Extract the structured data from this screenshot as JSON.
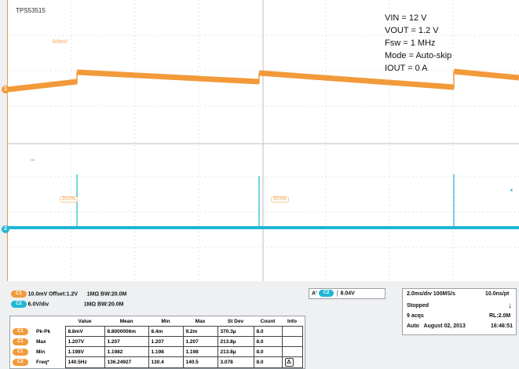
{
  "screen": {
    "title": "TPS53515",
    "settings": [
      "VIN = 12 V",
      "VOUT = 1.2 V",
      "Fsw = 1 MHz",
      "Mode = Auto-skip",
      "IOUT = 0 A"
    ],
    "ch1_marker": "1",
    "ch2_marker": "2",
    "small_tag_1": "500mV",
    "small_tag_2": "20.0%",
    "small_tag_3": "20.0%",
    "colors": {
      "ch1": "#f29a3a",
      "ch2": "#1fb6d5",
      "grid": "#c8c8c8"
    }
  },
  "channels": [
    {
      "badge": "C1",
      "scale": "10.0mV",
      "offset": "Offset:1.2V",
      "impedance": "1MΩ",
      "bw": "BW:20.0M"
    },
    {
      "badge": "C2",
      "scale": "6.0V/div",
      "impedance": "1MΩ",
      "bw": "BW:20.0M"
    }
  ],
  "trigger": {
    "label": "A'",
    "source": "C2",
    "slope_icon": "rising-edge",
    "level": "8.04V"
  },
  "timebase": {
    "scale": "2.0ms/div",
    "sample_rate": "100MS/s",
    "resolution": "10.0ns/pt",
    "state": "Stopped",
    "acqs": "9 acqs",
    "record_length": "RL:2.0M",
    "mode": "Auto",
    "date": "August 02, 2013",
    "time": "16:46:51"
  },
  "measurements": {
    "headers": [
      "",
      "",
      "Value",
      "Mean",
      "Min",
      "Max",
      "St Dev",
      "Count",
      "Info"
    ],
    "rows": [
      {
        "badge": "C1",
        "name": "Pk-Pk",
        "cells": [
          "8.8mV",
          "8.8000006m",
          "8.4m",
          "9.2m",
          "370.3µ",
          "8.0",
          ""
        ]
      },
      {
        "badge": "C1",
        "name": "Max",
        "cells": [
          "1.207V",
          "1.207",
          "1.207",
          "1.207",
          "213.8µ",
          "8.0",
          ""
        ]
      },
      {
        "badge": "C1",
        "name": "Min",
        "cells": [
          "1.198V",
          "1.1982",
          "1.198",
          "1.198",
          "213.8µ",
          "8.0",
          ""
        ]
      },
      {
        "badge": "C2",
        "name": "Freq*",
        "cells": [
          "140.5Hz",
          "136.24927",
          "130.4",
          "140.5",
          "3.078",
          "8.0",
          "⚠"
        ]
      }
    ]
  }
}
